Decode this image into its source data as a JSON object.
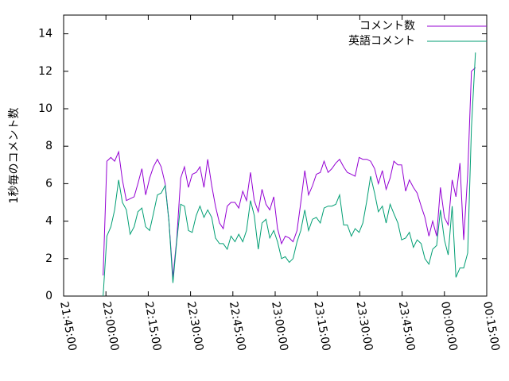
{
  "chart_data": {
    "type": "line",
    "ylabel": "1秒毎のコメント数",
    "x": [
      "21:59:00",
      "22:00:20",
      "22:01:45",
      "22:03:05",
      "22:04:30",
      "22:05:50",
      "22:07:15",
      "22:08:35",
      "22:10:00",
      "22:11:20",
      "22:12:45",
      "22:14:05",
      "22:15:30",
      "22:16:50",
      "22:18:15",
      "22:19:35",
      "22:21:00",
      "22:22:20",
      "22:23:45",
      "22:25:05",
      "22:26:30",
      "22:27:50",
      "22:29:15",
      "22:30:35",
      "22:32:00",
      "22:33:20",
      "22:34:45",
      "22:36:05",
      "22:37:30",
      "22:38:50",
      "22:40:15",
      "22:41:35",
      "22:43:00",
      "22:44:20",
      "22:45:45",
      "22:47:05",
      "22:48:30",
      "22:49:50",
      "22:51:15",
      "22:52:35",
      "22:54:00",
      "22:55:20",
      "22:56:45",
      "22:58:05",
      "22:59:30",
      "23:00:50",
      "23:02:15",
      "23:03:35",
      "23:05:00",
      "23:06:20",
      "23:07:45",
      "23:09:05",
      "23:10:30",
      "23:11:50",
      "23:13:15",
      "23:14:35",
      "23:16:00",
      "23:17:20",
      "23:18:45",
      "23:20:05",
      "23:21:30",
      "23:22:50",
      "23:24:15",
      "23:25:35",
      "23:27:00",
      "23:28:20",
      "23:29:45",
      "23:31:05",
      "23:32:30",
      "23:33:50",
      "23:35:15",
      "23:36:35",
      "23:38:00",
      "23:39:20",
      "23:40:45",
      "23:42:05",
      "23:43:30",
      "23:44:50",
      "23:46:15",
      "23:47:35",
      "23:49:00",
      "23:50:20",
      "23:51:45",
      "23:53:05",
      "23:54:30",
      "23:55:50",
      "23:57:15",
      "23:58:35",
      "00:00:00",
      "00:01:20",
      "00:02:45",
      "00:04:05",
      "00:05:30",
      "00:06:50",
      "00:08:15",
      "00:09:35",
      "00:11:00"
    ],
    "series": [
      {
        "name": "コメント数",
        "color": "#9400d3",
        "values": [
          1.1,
          7.2,
          7.4,
          7.2,
          7.7,
          6.2,
          5.1,
          5.2,
          5.3,
          6.0,
          6.8,
          5.4,
          6.3,
          6.9,
          7.3,
          6.9,
          6.0,
          4.0,
          1.0,
          3.0,
          6.3,
          6.9,
          5.8,
          6.5,
          6.6,
          6.9,
          5.8,
          7.3,
          5.9,
          4.8,
          3.9,
          3.6,
          4.8,
          5.0,
          5.0,
          4.7,
          5.6,
          5.1,
          6.6,
          5.1,
          4.5,
          5.7,
          4.9,
          4.6,
          5.3,
          3.6,
          2.8,
          3.2,
          3.1,
          2.9,
          3.5,
          5.0,
          6.7,
          5.4,
          5.9,
          6.5,
          6.6,
          7.2,
          6.6,
          6.8,
          7.1,
          7.3,
          6.9,
          6.6,
          6.5,
          6.4,
          7.4,
          7.3,
          7.3,
          7.2,
          6.8,
          6.0,
          6.7,
          5.7,
          6.3,
          7.2,
          7.0,
          7.0,
          5.6,
          6.2,
          5.8,
          5.5,
          4.8,
          4.2,
          3.2,
          4.0,
          3.2,
          5.8,
          4.2,
          3.8,
          6.2,
          5.3,
          7.1,
          3.0,
          6.5,
          12.0,
          12.2
        ]
      },
      {
        "name": "英語コメント",
        "color": "#009e73",
        "values": [
          0,
          3.2,
          3.7,
          4.6,
          6.2,
          5.0,
          4.6,
          3.3,
          3.7,
          4.5,
          4.7,
          3.7,
          3.5,
          4.4,
          5.4,
          5.5,
          5.9,
          4.0,
          0.7,
          2.9,
          4.9,
          4.8,
          3.5,
          3.4,
          4.3,
          4.8,
          4.2,
          4.6,
          4.2,
          3.1,
          2.8,
          2.8,
          2.5,
          3.2,
          2.9,
          3.3,
          2.9,
          3.5,
          5.1,
          4.3,
          2.5,
          3.9,
          4.1,
          3.1,
          3.5,
          2.9,
          2.0,
          2.1,
          1.8,
          2.0,
          2.9,
          3.5,
          4.6,
          3.5,
          4.1,
          4.2,
          3.9,
          4.7,
          4.8,
          4.8,
          4.9,
          5.4,
          3.8,
          3.8,
          3.2,
          3.6,
          3.4,
          3.9,
          5.1,
          6.4,
          5.5,
          4.5,
          4.8,
          3.9,
          4.9,
          4.4,
          3.9,
          3.0,
          3.1,
          3.4,
          2.6,
          3.0,
          2.8,
          2.0,
          1.7,
          2.5,
          2.7,
          4.6,
          3.0,
          2.2,
          4.8,
          1.0,
          1.5,
          1.5,
          2.3,
          9.0,
          13.0
        ]
      }
    ],
    "xlim": [
      "21:45:00",
      "00:15:00"
    ],
    "xticks": [
      "21:45:00",
      "22:00:00",
      "22:15:00",
      "22:30:00",
      "22:45:00",
      "23:00:00",
      "23:15:00",
      "23:30:00",
      "23:45:00",
      "00:00:00",
      "00:15:00"
    ],
    "ylim": [
      0,
      15
    ],
    "yticks": [
      0,
      2,
      4,
      6,
      8,
      10,
      12,
      14
    ],
    "legend": "top-right"
  }
}
